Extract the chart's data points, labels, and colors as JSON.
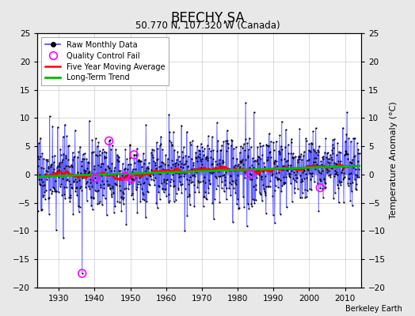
{
  "title": "BEECHY,SA",
  "subtitle": "50.770 N, 107.320 W (Canada)",
  "ylabel_right": "Temperature Anomaly (°C)",
  "credit": "Berkeley Earth",
  "year_start": 1924,
  "year_end": 2014,
  "ylim": [
    -20,
    25
  ],
  "yticks": [
    -20,
    -15,
    -10,
    -5,
    0,
    5,
    10,
    15,
    20,
    25
  ],
  "xticks": [
    1930,
    1940,
    1950,
    1960,
    1970,
    1980,
    1990,
    2000,
    2010
  ],
  "bg_color": "#e8e8e8",
  "plot_bg_color": "#ffffff",
  "line_color": "#4444ff",
  "dot_color": "#000000",
  "moving_avg_color": "#ff0000",
  "trend_color": "#00bb00",
  "qc_fail_color": "#ff00ff",
  "seed": 17
}
